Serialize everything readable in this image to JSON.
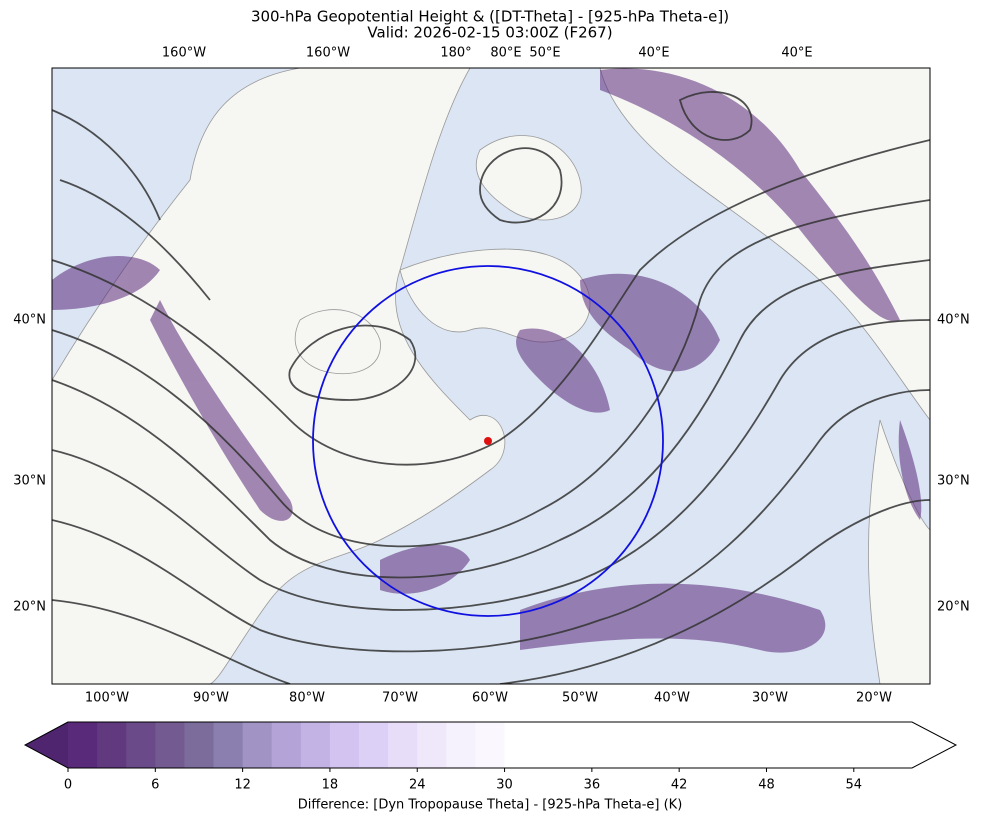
{
  "title": "300-hPa Geopotential Height & ([DT-Theta] - [925-hPa Theta-e])",
  "subtitle": "Valid: 2026-02-15 03:00Z (F267)",
  "map": {
    "top_labels": [
      "160°W",
      "160°W",
      "180°",
      "80°E",
      "50°E",
      "40°E",
      "40°E"
    ],
    "bottom_labels": [
      "100°W",
      "90°W",
      "80°W",
      "70°W",
      "60°W",
      "50°W",
      "40°W",
      "30°W",
      "20°W"
    ],
    "left_labels": [
      "40°N",
      "30°N",
      "20°N"
    ],
    "right_labels": [
      "40°N",
      "30°N",
      "20°N"
    ]
  },
  "colorbar": {
    "label": "Difference: [Dyn Tropopause Theta] - [925-hPa Theta-e] (K)",
    "lim": [
      0,
      58
    ],
    "ticks": [
      0,
      6,
      12,
      18,
      24,
      30,
      36,
      42,
      48,
      54
    ],
    "bounds": [
      0,
      2,
      4,
      6,
      8,
      10,
      12,
      14,
      16,
      18,
      20,
      22,
      24,
      26,
      28,
      30,
      58
    ],
    "colors": [
      "#5a2a7a",
      "#61397f",
      "#6a4a88",
      "#735a90",
      "#7c6c9c",
      "#8a7fae",
      "#a193c4",
      "#b3a3d6",
      "#c3b2e4",
      "#d2c3f0",
      "#ddd0f6",
      "#e7ddf9",
      "#efe8fb",
      "#f5f1fd",
      "#faf8fe",
      "#ffffff"
    ],
    "under_color": "#4f2570",
    "over_color": "#ffffff"
  }
}
